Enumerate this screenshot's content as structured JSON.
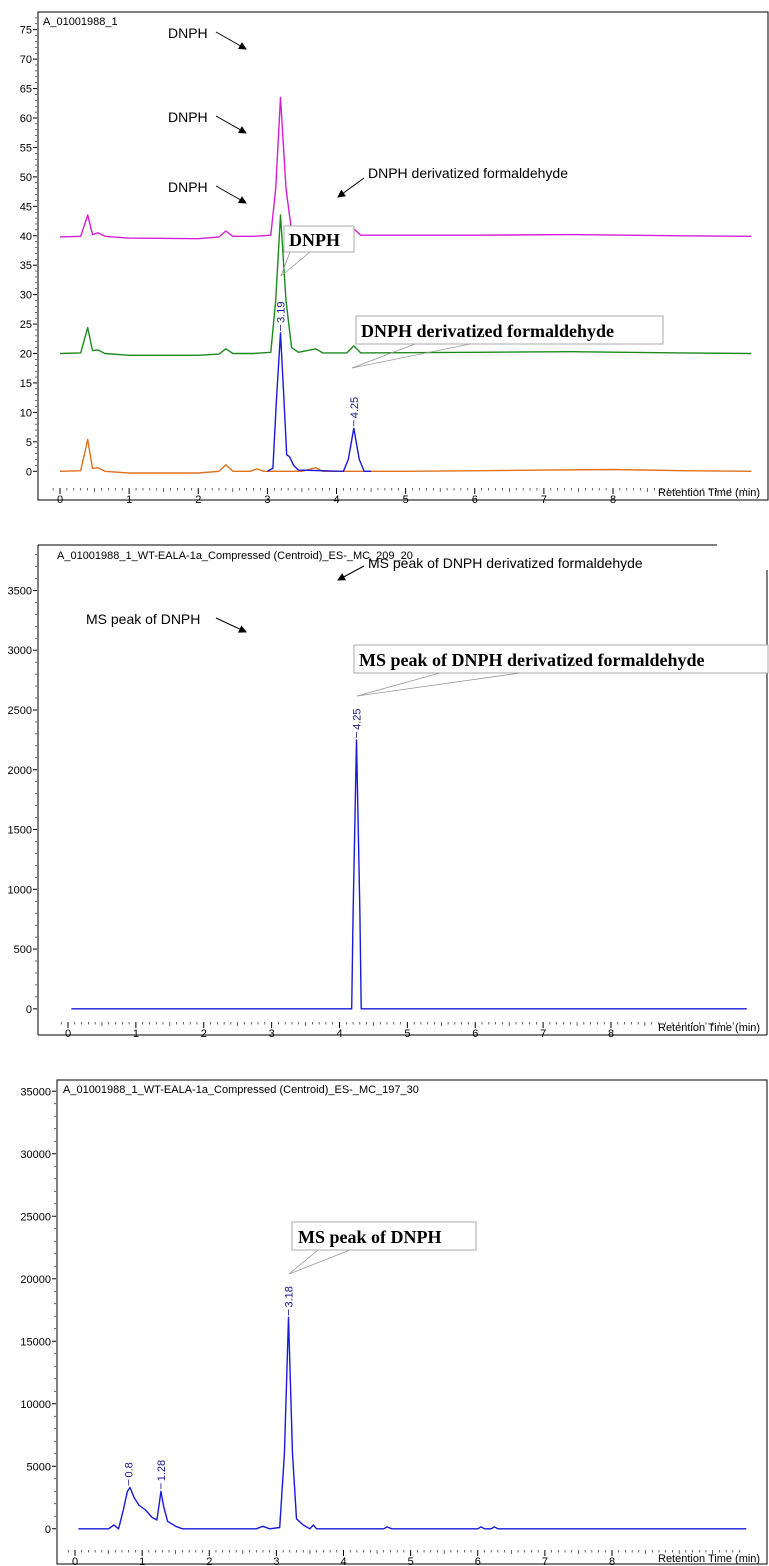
{
  "chart_data": [
    {
      "type": "line",
      "title": "A_01001988_1",
      "xlabel": "Retention Time (min)",
      "xlim": [
        -0.2,
        10.0
      ],
      "ylim": [
        -2.5,
        78
      ],
      "x_ticks": [
        "0",
        "1",
        "2",
        "3",
        "4",
        "5",
        "6",
        "7",
        "8"
      ],
      "y_ticks": [
        "0",
        "5",
        "10",
        "15",
        "20",
        "25",
        "30",
        "35",
        "40",
        "45",
        "50",
        "55",
        "60",
        "65",
        "70",
        "75"
      ],
      "series": [
        {
          "color": "#d61dd6",
          "baseline": 40,
          "points": [
            [
              0,
              39.8
            ],
            [
              0.3,
              39.9
            ],
            [
              0.4,
              43.5
            ],
            [
              0.47,
              40.2
            ],
            [
              0.55,
              40.5
            ],
            [
              0.65,
              39.9
            ],
            [
              1.0,
              39.6
            ],
            [
              2.0,
              39.5
            ],
            [
              2.3,
              39.8
            ],
            [
              2.4,
              40.8
            ],
            [
              2.5,
              39.9
            ],
            [
              2.8,
              39.9
            ],
            [
              3.05,
              40.1
            ],
            [
              3.12,
              48
            ],
            [
              3.19,
              63.5
            ],
            [
              3.27,
              48
            ],
            [
              3.35,
              40.8
            ],
            [
              3.45,
              40.1
            ],
            [
              4.15,
              40.2
            ],
            [
              4.25,
              41.2
            ],
            [
              4.35,
              40.1
            ],
            [
              6.0,
              40.1
            ],
            [
              7.4,
              40.2
            ],
            [
              9.0,
              40
            ],
            [
              10.0,
              39.9
            ]
          ]
        },
        {
          "color": "#1e8a1e",
          "baseline": 20,
          "points": [
            [
              0,
              20
            ],
            [
              0.3,
              20.1
            ],
            [
              0.4,
              24.4
            ],
            [
              0.47,
              20.5
            ],
            [
              0.55,
              20.6
            ],
            [
              0.65,
              20
            ],
            [
              1.0,
              19.7
            ],
            [
              2.0,
              19.7
            ],
            [
              2.3,
              19.9
            ],
            [
              2.4,
              20.8
            ],
            [
              2.5,
              20
            ],
            [
              2.8,
              20
            ],
            [
              3.05,
              20.2
            ],
            [
              3.12,
              29
            ],
            [
              3.19,
              43.5
            ],
            [
              3.27,
              29
            ],
            [
              3.35,
              21
            ],
            [
              3.45,
              20.2
            ],
            [
              3.7,
              20.8
            ],
            [
              3.8,
              20.1
            ],
            [
              4.15,
              20.1
            ],
            [
              4.25,
              21.3
            ],
            [
              4.35,
              20.1
            ],
            [
              6.0,
              20.2
            ],
            [
              7.4,
              20.3
            ],
            [
              9.0,
              20.1
            ],
            [
              10.0,
              20
            ]
          ]
        },
        {
          "color": "#e0701a",
          "baseline": 0,
          "points": [
            [
              0,
              0
            ],
            [
              0.3,
              0.1
            ],
            [
              0.4,
              5.4
            ],
            [
              0.47,
              0.5
            ],
            [
              0.55,
              0.6
            ],
            [
              0.65,
              0
            ],
            [
              1.0,
              -0.3
            ],
            [
              2.0,
              -0.3
            ],
            [
              2.3,
              0
            ],
            [
              2.4,
              1.1
            ],
            [
              2.5,
              0
            ],
            [
              2.75,
              0
            ],
            [
              2.85,
              0.4
            ],
            [
              2.95,
              0
            ],
            [
              3.5,
              0
            ],
            [
              3.7,
              0.6
            ],
            [
              3.8,
              0
            ],
            [
              5.0,
              0
            ],
            [
              7.0,
              0.2
            ],
            [
              8.0,
              0.3
            ],
            [
              9.0,
              0.1
            ],
            [
              10.0,
              0
            ]
          ]
        },
        {
          "color": "#1a1ad9",
          "baseline": 0,
          "points": [
            [
              3.0,
              0
            ],
            [
              3.08,
              0.5
            ],
            [
              3.13,
              12
            ],
            [
              3.19,
              23.5
            ],
            [
              3.24,
              12
            ],
            [
              3.28,
              2.8
            ],
            [
              3.32,
              2.5
            ],
            [
              3.38,
              1
            ],
            [
              3.45,
              0.2
            ],
            [
              4.1,
              0
            ],
            [
              4.17,
              2
            ],
            [
              4.25,
              7.3
            ],
            [
              4.33,
              2
            ],
            [
              4.4,
              0
            ],
            [
              4.5,
              0
            ]
          ]
        }
      ],
      "peak_labels": [
        {
          "x": 3.19,
          "text": "3.19"
        },
        {
          "x": 4.25,
          "text": "4.25"
        }
      ],
      "annotations": {
        "dnph_small": "DNPH",
        "dnph_deriv_small": "DNPH derivatized formaldehyde",
        "dnph_box": "DNPH",
        "deriv_box": "DNPH derivatized formaldehyde"
      }
    },
    {
      "type": "line",
      "title": "A_01001988_1_WT-EALA-1a_Compressed (Centroid)_ES-_MC_209_20",
      "xlabel": "Retention Time (min)",
      "xlim": [
        -0.2,
        10.0
      ],
      "ylim": [
        -110,
        3880
      ],
      "x_ticks": [
        "0",
        "1",
        "2",
        "3",
        "4",
        "5",
        "6",
        "7",
        "8"
      ],
      "y_ticks": [
        "0",
        "500",
        "1000",
        "1500",
        "2000",
        "2500",
        "3000",
        "3500"
      ],
      "series": [
        {
          "color": "#1a1ad9",
          "points": [
            [
              0.05,
              0
            ],
            [
              4.18,
              0
            ],
            [
              4.2,
              800
            ],
            [
              4.25,
              2250
            ],
            [
              4.3,
              800
            ],
            [
              4.32,
              0
            ],
            [
              10.0,
              0
            ]
          ]
        }
      ],
      "peak_labels": [
        {
          "x": 4.25,
          "text": "4.25"
        }
      ],
      "annotations": {
        "ms_deriv_small": "MS peak of DNPH derivatized formaldehyde",
        "ms_dnph_small": "MS peak of DNPH",
        "ms_deriv_box": "MS peak of DNPH derivatized formaldehyde"
      }
    },
    {
      "type": "line",
      "title": "A_01001988_1_WT-EALA-1a_Compressed (Centroid)_ES-_MC_197_30",
      "xlabel": "Retention Time (min)",
      "xlim": [
        -0.2,
        10.0
      ],
      "ylim": [
        -1700,
        35900
      ],
      "x_ticks": [
        "0",
        "1",
        "2",
        "3",
        "4",
        "5",
        "6",
        "7",
        "8"
      ],
      "y_ticks": [
        "0",
        "5000",
        "10000",
        "15000",
        "20000",
        "25000",
        "30000",
        "35000"
      ],
      "series": [
        {
          "color": "#1a1ad9",
          "points": [
            [
              0.05,
              0
            ],
            [
              0.5,
              0
            ],
            [
              0.58,
              300
            ],
            [
              0.65,
              0
            ],
            [
              0.72,
              1500
            ],
            [
              0.78,
              3000
            ],
            [
              0.82,
              3300
            ],
            [
              0.88,
              2500
            ],
            [
              0.95,
              1900
            ],
            [
              1.05,
              1500
            ],
            [
              1.15,
              900
            ],
            [
              1.22,
              700
            ],
            [
              1.26,
              2200
            ],
            [
              1.28,
              3000
            ],
            [
              1.32,
              1800
            ],
            [
              1.38,
              600
            ],
            [
              1.5,
              200
            ],
            [
              1.6,
              0
            ],
            [
              2.7,
              0
            ],
            [
              2.8,
              200
            ],
            [
              2.9,
              0
            ],
            [
              3.05,
              100
            ],
            [
              3.12,
              6000
            ],
            [
              3.18,
              16900
            ],
            [
              3.24,
              6000
            ],
            [
              3.3,
              800
            ],
            [
              3.4,
              300
            ],
            [
              3.5,
              0
            ],
            [
              3.55,
              300
            ],
            [
              3.6,
              0
            ],
            [
              4.6,
              0
            ],
            [
              4.65,
              150
            ],
            [
              4.72,
              0
            ],
            [
              6.0,
              0
            ],
            [
              6.05,
              150
            ],
            [
              6.1,
              0
            ],
            [
              6.2,
              0
            ],
            [
              6.25,
              150
            ],
            [
              6.3,
              0
            ],
            [
              10.0,
              0
            ]
          ]
        }
      ],
      "peak_labels": [
        {
          "x": 0.8,
          "text": "0.8"
        },
        {
          "x": 1.28,
          "text": "1.28"
        },
        {
          "x": 3.18,
          "text": "3.18"
        }
      ],
      "annotations": {
        "ms_dnph_box": "MS peak of DNPH"
      }
    }
  ]
}
